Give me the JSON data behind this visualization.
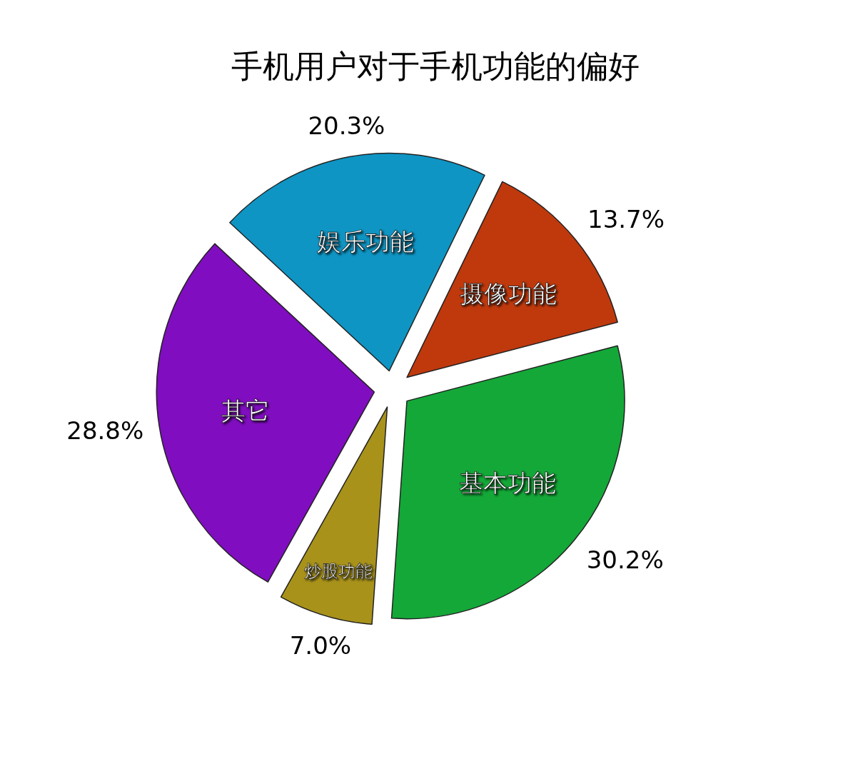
{
  "chart_data": {
    "type": "pie",
    "title": "手机用户对于手机功能的偏好",
    "categories": [
      "摄像功能",
      "基本功能",
      "炒股功能",
      "其它",
      "娱乐功能"
    ],
    "values": [
      13.7,
      30.2,
      7.0,
      28.8,
      20.3
    ],
    "colors": [
      "#c0390d",
      "#14a838",
      "#a8921a",
      "#800dc0",
      "#0e95c4"
    ],
    "value_labels": [
      "13.7%",
      "30.2%",
      "7.0%",
      "28.8%",
      "20.3%"
    ],
    "legend": false
  }
}
